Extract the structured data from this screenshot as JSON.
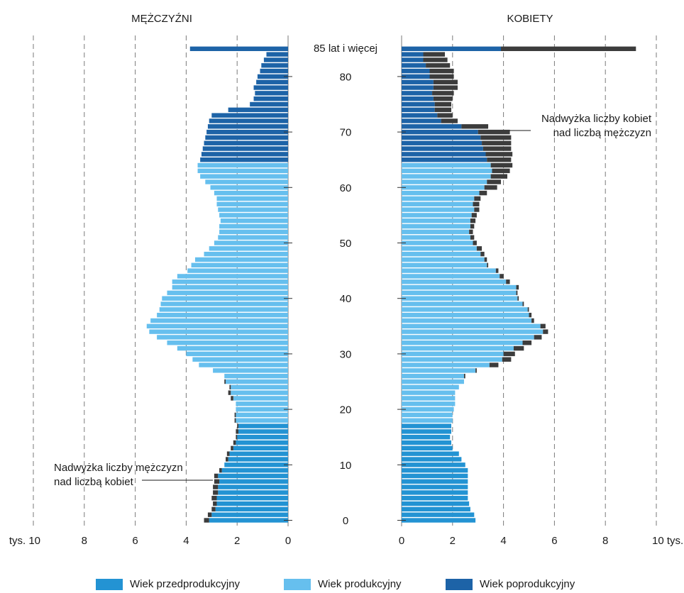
{
  "chart_data": {
    "type": "bar",
    "subtype": "population-pyramid",
    "left_title": "MĘŻCZYŹNI",
    "right_title": "KOBIETY",
    "top_age_label": "85 lat i więcej",
    "age_tick_labels": [
      "0",
      "10",
      "20",
      "30",
      "40",
      "50",
      "60",
      "70",
      "80"
    ],
    "axis_ticks_left": [
      "tys. 10",
      "8",
      "6",
      "4",
      "2",
      "0"
    ],
    "axis_ticks_right": [
      "0",
      "2",
      "4",
      "6",
      "8",
      "10 tys."
    ],
    "xlim": [
      0,
      10
    ],
    "annotation_men": [
      "Nadwyżka liczby mężczyzn",
      "nad liczbą kobiet"
    ],
    "annotation_women": [
      "Nadwyżka liczby kobiet",
      "nad liczbą mężczyzn"
    ],
    "legend": [
      {
        "name": "Wiek przedprodukcyjny",
        "color": "#2393d3"
      },
      {
        "name": "Wiek produkcyjny",
        "color": "#66bfee"
      },
      {
        "name": "Wiek poprodukcyjny",
        "color": "#1d63a7"
      }
    ],
    "surplus_color": "#3c3c3c",
    "grid_color": "#7a7a7a",
    "ages": [
      0,
      1,
      2,
      3,
      4,
      5,
      6,
      7,
      8,
      9,
      10,
      11,
      12,
      13,
      14,
      15,
      16,
      17,
      18,
      19,
      20,
      21,
      22,
      23,
      24,
      25,
      26,
      27,
      28,
      29,
      30,
      31,
      32,
      33,
      34,
      35,
      36,
      37,
      38,
      39,
      40,
      41,
      42,
      43,
      44,
      45,
      46,
      47,
      48,
      49,
      50,
      51,
      52,
      53,
      54,
      55,
      56,
      57,
      58,
      59,
      60,
      61,
      62,
      63,
      64,
      65,
      66,
      67,
      68,
      69,
      70,
      71,
      72,
      73,
      74,
      75,
      76,
      77,
      78,
      79,
      80,
      81,
      82,
      83,
      84,
      85
    ],
    "male": [
      3.1,
      3.0,
      2.85,
      2.8,
      2.8,
      2.75,
      2.75,
      2.7,
      2.75,
      2.6,
      2.5,
      2.35,
      2.3,
      2.15,
      2.05,
      2.0,
      1.95,
      1.95,
      2.05,
      2.05,
      2.05,
      2.05,
      2.15,
      2.25,
      2.25,
      2.45,
      2.5,
      2.95,
      3.5,
      3.75,
      4.0,
      4.35,
      4.75,
      5.15,
      5.45,
      5.55,
      5.4,
      5.15,
      5.05,
      5.0,
      4.95,
      4.75,
      4.55,
      4.55,
      4.35,
      3.95,
      3.8,
      3.65,
      3.3,
      3.1,
      2.9,
      2.75,
      2.7,
      2.7,
      2.65,
      2.7,
      2.75,
      2.8,
      2.8,
      2.9,
      3.05,
      3.25,
      3.45,
      3.55,
      3.55,
      3.45,
      3.4,
      3.35,
      3.3,
      3.25,
      3.2,
      3.15,
      3.1,
      3.0,
      2.35,
      1.5,
      1.35,
      1.3,
      1.35,
      1.25,
      1.2,
      1.1,
      1.05,
      0.95,
      0.85,
      3.85
    ],
    "female": [
      2.9,
      2.85,
      2.7,
      2.65,
      2.6,
      2.6,
      2.6,
      2.6,
      2.6,
      2.6,
      2.5,
      2.35,
      2.25,
      2.0,
      1.95,
      1.9,
      1.95,
      1.95,
      2.0,
      2.0,
      2.05,
      2.1,
      2.1,
      2.1,
      2.25,
      2.45,
      2.45,
      2.9,
      3.45,
      3.95,
      4.0,
      4.4,
      4.75,
      5.2,
      5.55,
      5.45,
      5.1,
      5.0,
      4.95,
      4.75,
      4.55,
      4.5,
      4.5,
      4.1,
      3.85,
      3.7,
      3.35,
      3.25,
      3.1,
      2.95,
      2.8,
      2.7,
      2.65,
      2.7,
      2.7,
      2.75,
      2.85,
      2.8,
      2.85,
      3.05,
      3.25,
      3.35,
      3.5,
      3.55,
      3.5,
      3.35,
      3.3,
      3.2,
      3.15,
      3.1,
      3.0,
      2.35,
      1.55,
      1.4,
      1.3,
      1.3,
      1.25,
      1.2,
      1.25,
      1.25,
      1.1,
      1.1,
      0.95,
      0.85,
      0.85,
      3.9
    ],
    "female_surplus": [
      0,
      0,
      0,
      0,
      0,
      0,
      0,
      0,
      0,
      0,
      0,
      0,
      0,
      0,
      0,
      0,
      0,
      0,
      0,
      0,
      0,
      0,
      0,
      0,
      0,
      0,
      0.05,
      0.05,
      0.35,
      0.35,
      0.45,
      0.4,
      0.35,
      0.3,
      0.2,
      0.2,
      0.1,
      0.1,
      0.05,
      0.05,
      0.05,
      0.05,
      0.1,
      0.15,
      0.15,
      0.1,
      0.05,
      0.1,
      0.15,
      0.2,
      0.15,
      0.15,
      0.15,
      0.15,
      0.2,
      0.2,
      0.2,
      0.25,
      0.25,
      0.3,
      0.5,
      0.55,
      0.65,
      0.7,
      0.85,
      0.95,
      1.05,
      1.1,
      1.15,
      1.2,
      1.25,
      1.05,
      0.65,
      0.6,
      0.65,
      0.65,
      0.75,
      0.85,
      0.95,
      0.95,
      0.95,
      0.95,
      0.95,
      0.95,
      0.85,
      5.3
    ],
    "male_surplus": [
      0.2,
      0.15,
      0.15,
      0.15,
      0.2,
      0.2,
      0.2,
      0.2,
      0.15,
      0.1,
      0,
      0.1,
      0.1,
      0.1,
      0.1,
      0.05,
      0.1,
      0.05,
      0.05,
      0.05,
      0,
      0,
      0.1,
      0.1,
      0.05,
      0.05,
      0,
      0,
      0,
      0,
      0,
      0,
      0,
      0,
      0,
      0,
      0,
      0,
      0,
      0,
      0,
      0,
      0,
      0,
      0,
      0,
      0,
      0,
      0,
      0,
      0,
      0,
      0,
      0,
      0,
      0,
      0,
      0,
      0,
      0,
      0,
      0,
      0,
      0,
      0,
      0,
      0,
      0,
      0,
      0,
      0,
      0,
      0,
      0,
      0,
      0,
      0,
      0,
      0,
      0,
      0,
      0,
      0,
      0,
      0,
      0
    ]
  }
}
